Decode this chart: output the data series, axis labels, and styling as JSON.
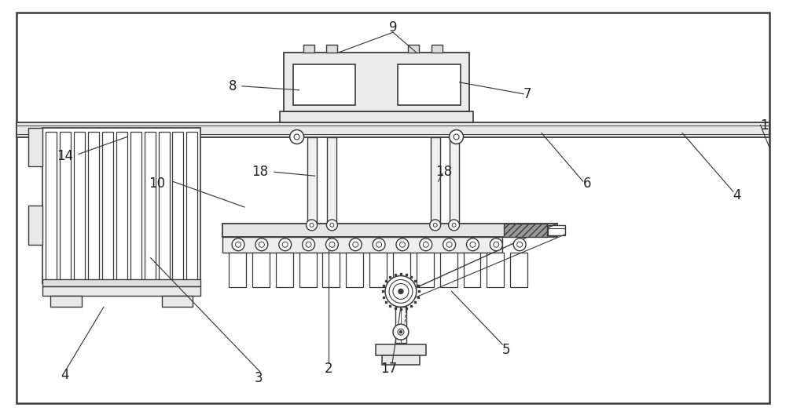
{
  "bg_color": "#ffffff",
  "lc": "#3a3a3a",
  "fig_width": 10.0,
  "fig_height": 5.29,
  "dpi": 100
}
